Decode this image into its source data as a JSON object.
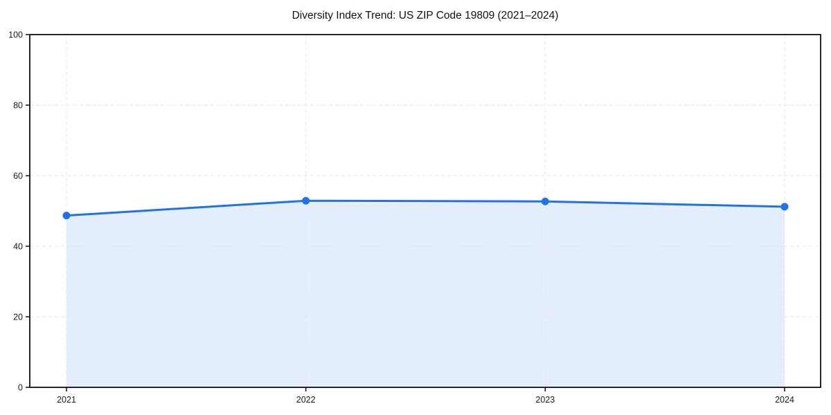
{
  "figure": {
    "background_color": "#ffffff"
  },
  "chart_data": {
    "type": "area",
    "title": "Diversity Index Trend: US ZIP Code 19809 (2021–2024)",
    "x": [
      2021,
      2022,
      2023,
      2024
    ],
    "values": [
      48.7,
      52.9,
      52.7,
      51.2
    ],
    "xticklabels": [
      "2021",
      "2022",
      "2023",
      "2024"
    ],
    "yticks": [
      0,
      20,
      40,
      60,
      80,
      100
    ],
    "ylim": [
      0,
      100
    ],
    "xlabel": "",
    "ylabel": "",
    "grid": true,
    "grid_line_style": "dashed",
    "legend": "none",
    "line_color": "#2173e5",
    "marker_color": "#2173e5",
    "fill_color": "rgba(33, 115, 229, 0.12)",
    "grid_color": "#e4e4e4",
    "axis_color": "#000000",
    "text_color": "#1a1a1a"
  }
}
